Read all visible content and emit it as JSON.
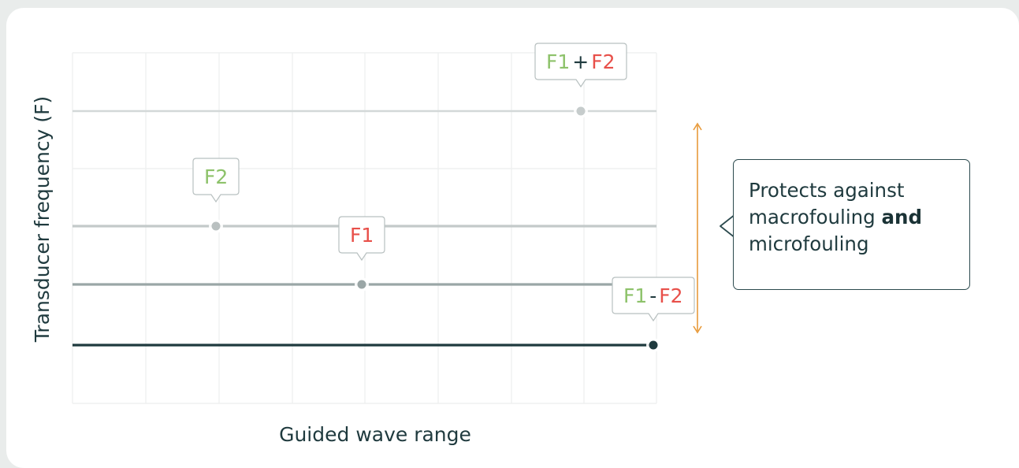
{
  "colors": {
    "green": "#8dc26a",
    "red": "#e8504a",
    "dark": "#1f3a3e",
    "arrow": "#e89a3a",
    "grid": "#eceeee"
  },
  "chart": {
    "ylabel": "Transducer frequency (F)",
    "xlabel": "Guided wave range"
  },
  "markers": [
    {
      "id": "f1-plus-f2",
      "parts": [
        {
          "text": "F1",
          "color": "green"
        },
        {
          "text": "+",
          "color": "dark"
        },
        {
          "text": "F2",
          "color": "red"
        }
      ],
      "level": 4,
      "position": 7
    },
    {
      "id": "f2",
      "parts": [
        {
          "text": "F2",
          "color": "green"
        }
      ],
      "level": 3,
      "position": 2
    },
    {
      "id": "f1",
      "parts": [
        {
          "text": "F1",
          "color": "red"
        }
      ],
      "level": 2,
      "position": 4
    },
    {
      "id": "f1-minus-f2",
      "parts": [
        {
          "text": "F1",
          "color": "green"
        },
        {
          "text": "-",
          "color": "dark"
        },
        {
          "text": "F2",
          "color": "red"
        }
      ],
      "level": 1,
      "position": 8
    }
  ],
  "callout": {
    "line1": "Protects against",
    "line2_prefix": "macrofouling ",
    "line2_bold": "and",
    "line3": "microfouling"
  }
}
